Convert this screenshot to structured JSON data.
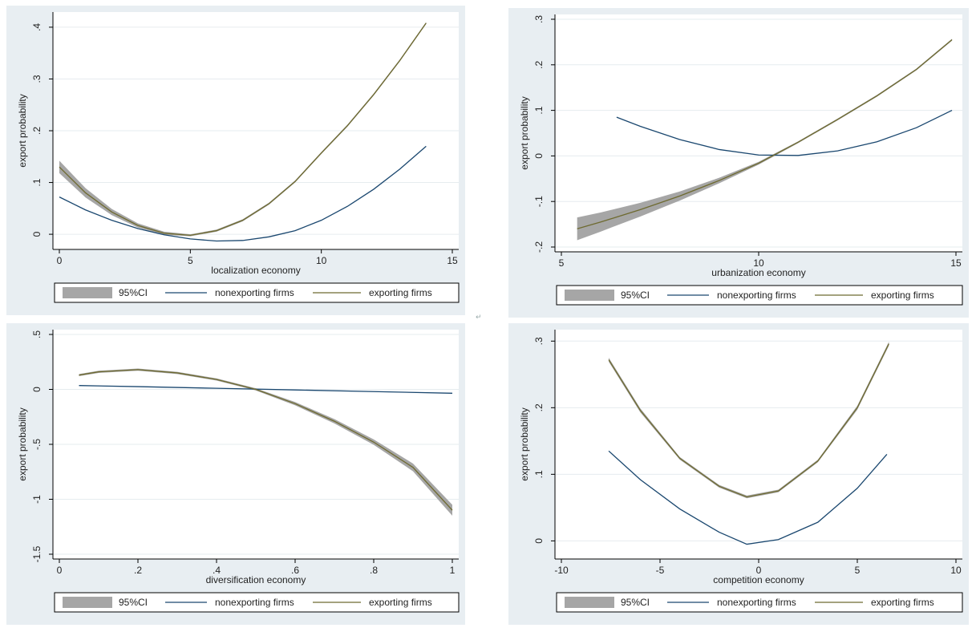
{
  "colors": {
    "background": "#e8eef2",
    "plot_area": "#ffffff",
    "ci": "#a6a6a6",
    "nonexporting": "#1a476f",
    "exporting": "#6e6a30",
    "gridline": "#e6ecef"
  },
  "legend": {
    "ci": "95%CI",
    "nonexporting": "nonexporting firms",
    "exporting": "exporting firms"
  },
  "stray_mark": "↵",
  "chart_data": [
    {
      "id": "localization",
      "type": "line",
      "xlabel": "localization economy",
      "ylabel": "export probability",
      "xlim": [
        0,
        15
      ],
      "ylim": [
        -0.02,
        0.42
      ],
      "xticks": [
        0,
        5,
        10,
        15
      ],
      "xtick_labels": [
        "0",
        "5",
        "10",
        "15"
      ],
      "yticks": [
        0,
        0.1,
        0.2,
        0.3,
        0.4
      ],
      "ytick_labels": [
        "0",
        ".1",
        ".2",
        ".3",
        ".4"
      ],
      "grid": true,
      "legend_position": "bottom",
      "series": [
        {
          "name": "nonexporting firms",
          "x": [
            0,
            1,
            2,
            3,
            4,
            5,
            6,
            7,
            8,
            9,
            10,
            11,
            12,
            13,
            14
          ],
          "y": [
            0.072,
            0.047,
            0.027,
            0.011,
            -0.001,
            -0.009,
            -0.013,
            -0.012,
            -0.005,
            0.007,
            0.027,
            0.054,
            0.087,
            0.126,
            0.17
          ]
        },
        {
          "name": "exporting firms",
          "x": [
            0,
            1,
            2,
            3,
            4,
            5,
            6,
            7,
            8,
            9,
            10,
            11,
            12,
            13,
            14
          ],
          "y": [
            0.13,
            0.08,
            0.043,
            0.017,
            0.002,
            -0.002,
            0.007,
            0.027,
            0.059,
            0.102,
            0.157,
            0.21,
            0.27,
            0.336,
            0.408
          ],
          "ci_halfwidth": [
            0.012,
            0.009,
            0.006,
            0.004,
            0.003,
            0.002,
            0.002,
            0.002,
            0.002,
            0.002,
            0.002,
            0.002,
            0.002,
            0.002,
            0.002
          ]
        }
      ]
    },
    {
      "id": "urbanization",
      "type": "line",
      "xlabel": "urbanization economy",
      "ylabel": "export probability",
      "xlim": [
        5,
        15
      ],
      "ylim": [
        -0.2,
        0.3
      ],
      "xticks": [
        5,
        10,
        15
      ],
      "xtick_labels": [
        "5",
        "10",
        "15"
      ],
      "yticks": [
        -0.2,
        -0.1,
        0,
        0.1,
        0.2,
        0.3
      ],
      "ytick_labels": [
        "-.2",
        "-.1",
        "0",
        ".1",
        ".2",
        ".3"
      ],
      "grid": true,
      "legend_position": "bottom",
      "series": [
        {
          "name": "nonexporting firms",
          "x": [
            6.4,
            7,
            8,
            9,
            10,
            11,
            12,
            13,
            14,
            14.9
          ],
          "y": [
            0.085,
            0.065,
            0.036,
            0.014,
            0.002,
            0.001,
            0.011,
            0.031,
            0.062,
            0.1
          ]
        },
        {
          "name": "exporting firms",
          "x": [
            5.4,
            6,
            7,
            8,
            9,
            10,
            11,
            12,
            13,
            14,
            14.9
          ],
          "y": [
            -0.16,
            -0.145,
            -0.118,
            -0.088,
            -0.054,
            -0.016,
            0.03,
            0.08,
            0.132,
            0.19,
            0.255
          ],
          "ci_halfwidth": [
            0.025,
            0.021,
            0.015,
            0.01,
            0.006,
            0.003,
            0.002,
            0.002,
            0.002,
            0.002,
            0.002
          ]
        }
      ]
    },
    {
      "id": "diversification",
      "type": "line",
      "xlabel": "diversification economy",
      "ylabel": "export probability",
      "xlim": [
        0,
        1
      ],
      "ylim": [
        -1.5,
        0.5
      ],
      "xticks": [
        0,
        0.2,
        0.4,
        0.6,
        0.8,
        1
      ],
      "xtick_labels": [
        "0",
        ".2",
        ".4",
        ".6",
        ".8",
        "1"
      ],
      "yticks": [
        -1.5,
        -1,
        -0.5,
        0,
        0.5
      ],
      "ytick_labels": [
        "-1.5",
        "-1",
        "-.5",
        "0",
        ".5"
      ],
      "grid": true,
      "legend_position": "bottom",
      "series": [
        {
          "name": "nonexporting firms",
          "x": [
            0.05,
            0.2,
            0.4,
            0.6,
            0.8,
            1.0
          ],
          "y": [
            0.035,
            0.025,
            0.01,
            -0.005,
            -0.02,
            -0.035
          ]
        },
        {
          "name": "exporting firms",
          "x": [
            0.05,
            0.1,
            0.2,
            0.3,
            0.4,
            0.5,
            0.6,
            0.7,
            0.8,
            0.9,
            1.0
          ],
          "y": [
            0.13,
            0.16,
            0.18,
            0.15,
            0.09,
            0.0,
            -0.13,
            -0.29,
            -0.48,
            -0.71,
            -1.1
          ],
          "ci_halfwidth": [
            0.01,
            0.01,
            0.01,
            0.01,
            0.01,
            0.01,
            0.015,
            0.02,
            0.025,
            0.035,
            0.05
          ]
        }
      ]
    },
    {
      "id": "competition",
      "type": "line",
      "xlabel": "competition economy",
      "ylabel": "export probability",
      "xlim": [
        -10,
        10
      ],
      "ylim": [
        -0.02,
        0.31
      ],
      "xticks": [
        -10,
        -5,
        0,
        5,
        10
      ],
      "xtick_labels": [
        "-10",
        "-5",
        "0",
        "5",
        "10"
      ],
      "yticks": [
        0,
        0.1,
        0.2,
        0.3
      ],
      "ytick_labels": [
        "0",
        ".1",
        ".2",
        ".3"
      ],
      "grid": true,
      "legend_position": "bottom",
      "series": [
        {
          "name": "nonexporting firms",
          "x": [
            -7.6,
            -6,
            -4,
            -2,
            -0.6,
            1,
            3,
            5,
            6.5
          ],
          "y": [
            0.135,
            0.092,
            0.048,
            0.013,
            -0.005,
            0.002,
            0.028,
            0.079,
            0.13
          ]
        },
        {
          "name": "exporting firms",
          "x": [
            -7.6,
            -6,
            -4,
            -2,
            -0.6,
            1,
            3,
            5,
            6.6
          ],
          "y": [
            0.272,
            0.196,
            0.124,
            0.082,
            0.066,
            0.075,
            0.12,
            0.2,
            0.296
          ],
          "ci_halfwidth": [
            0.003,
            0.003,
            0.002,
            0.002,
            0.002,
            0.002,
            0.002,
            0.003,
            0.003
          ]
        }
      ]
    }
  ]
}
